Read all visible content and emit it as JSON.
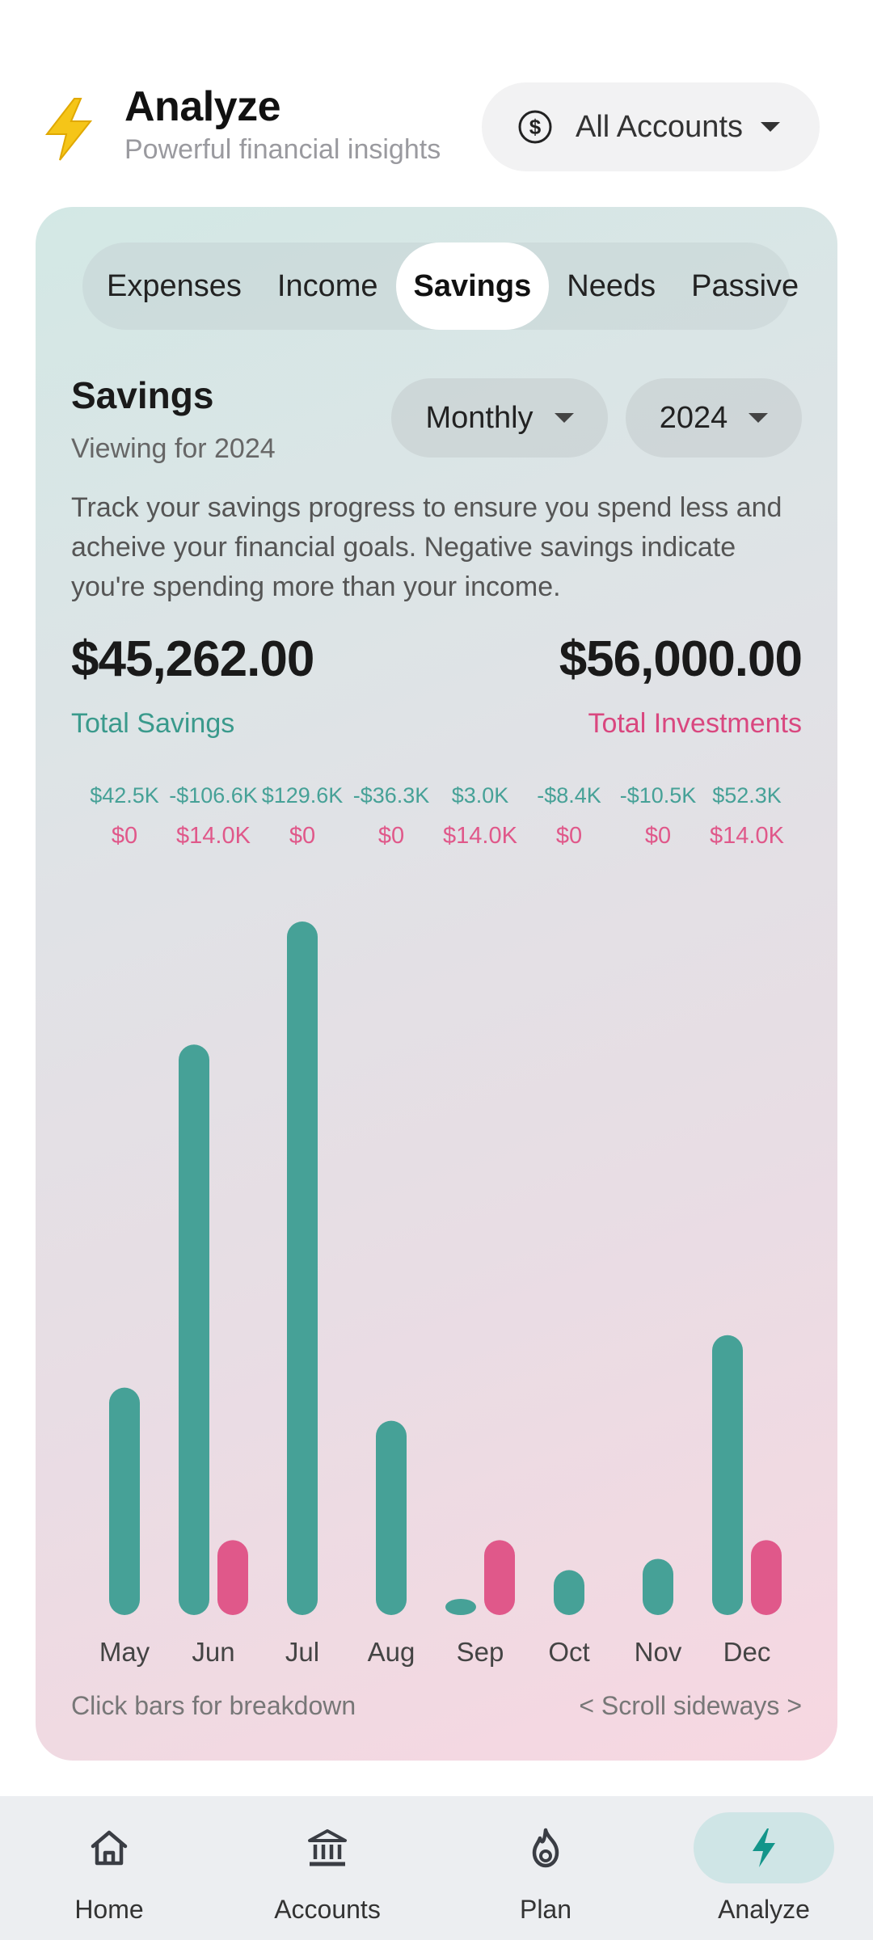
{
  "header": {
    "title": "Analyze",
    "subtitle": "Powerful financial insights",
    "account_select": "All Accounts"
  },
  "tabs": [
    {
      "label": "Expenses",
      "active": false
    },
    {
      "label": "Income",
      "active": false
    },
    {
      "label": "Savings",
      "active": true
    },
    {
      "label": "Needs",
      "active": false
    },
    {
      "label": "Passive",
      "active": false
    }
  ],
  "section": {
    "title": "Savings",
    "subtitle": "Viewing for 2024",
    "period": "Monthly",
    "year": "2024",
    "description": "Track your savings progress to ensure you spend less and acheive your financial goals. Negative savings indicate you're spending more than your income."
  },
  "totals": {
    "savings_value": "$45,262.00",
    "savings_label": "Total Savings",
    "investments_value": "$56,000.00",
    "investments_label": "Total Investments"
  },
  "colors": {
    "savings": "#46a197",
    "investments": "#e0588a",
    "accent": "#1a9f8c"
  },
  "chart_data": {
    "type": "bar",
    "categories": [
      "May",
      "Jun",
      "Jul",
      "Aug",
      "Sep",
      "Oct",
      "Nov",
      "Dec"
    ],
    "series": [
      {
        "name": "Total Savings",
        "labels": [
          "$42.5K",
          "-$106.6K",
          "$129.6K",
          "-$36.3K",
          "$3.0K",
          "-$8.4K",
          "-$10.5K",
          "$52.3K"
        ],
        "values": [
          42.5,
          -106.6,
          129.6,
          -36.3,
          3.0,
          -8.4,
          -10.5,
          52.3
        ]
      },
      {
        "name": "Total Investments",
        "labels": [
          "$0",
          "$14.0K",
          "$0",
          "$0",
          "$14.0K",
          "$0",
          "$0",
          "$14.0K"
        ],
        "values": [
          0,
          14.0,
          0,
          0,
          14.0,
          0,
          0,
          14.0
        ]
      }
    ]
  },
  "hints": {
    "left": "Click bars for breakdown",
    "right": "< Scroll sideways >"
  },
  "nav": [
    {
      "label": "Home",
      "icon": "home-icon",
      "active": false
    },
    {
      "label": "Accounts",
      "icon": "bank-icon",
      "active": false
    },
    {
      "label": "Plan",
      "icon": "flame-icon",
      "active": false
    },
    {
      "label": "Analyze",
      "icon": "bolt-icon",
      "active": true
    }
  ]
}
